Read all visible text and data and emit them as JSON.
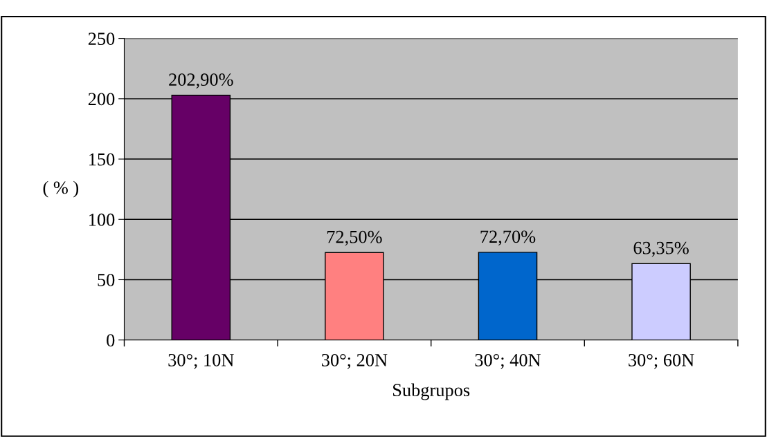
{
  "chart_data": {
    "type": "bar",
    "xlabel": "Subgrupos",
    "ylabel": "( % )",
    "categories": [
      "30°; 10N",
      "30°; 20N",
      "30°; 40N",
      "30°; 60N"
    ],
    "values": [
      202.9,
      72.5,
      72.7,
      63.35
    ],
    "colors": [
      "#660066",
      "#ff8080",
      "#0066cc",
      "#ccccff"
    ],
    "value_labels": [
      "202,90%",
      "72,50%",
      "72,70%",
      "63,35%"
    ],
    "ylim": [
      0,
      250
    ],
    "yticks": [
      0,
      50,
      100,
      150,
      200,
      250
    ],
    "grid": "y",
    "legend": false
  }
}
